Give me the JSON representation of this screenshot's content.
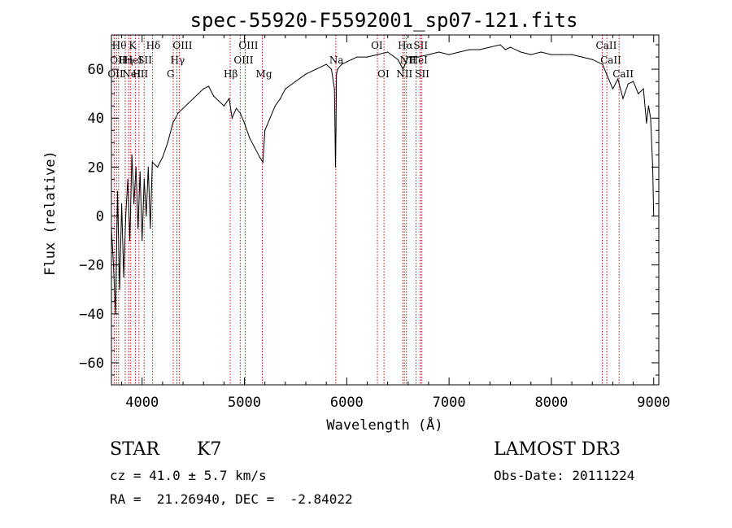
{
  "chart_data": {
    "type": "line",
    "title": "spec-55920-F5592001_sp07-121.fits",
    "xlabel": "Wavelength (Å)",
    "ylabel": "Flux (relative)",
    "xlim": [
      3700,
      9050
    ],
    "ylim": [
      -69,
      74
    ],
    "xticks": [
      4000,
      5000,
      6000,
      7000,
      8000,
      9000
    ],
    "yticks": [
      -60,
      -40,
      -20,
      0,
      20,
      40,
      60
    ],
    "series": [
      {
        "name": "flux",
        "x": [
          3700,
          3720,
          3740,
          3760,
          3780,
          3800,
          3820,
          3840,
          3860,
          3880,
          3900,
          3920,
          3940,
          3960,
          3980,
          4000,
          4020,
          4040,
          4060,
          4080,
          4100,
          4150,
          4200,
          4250,
          4300,
          4350,
          4400,
          4450,
          4500,
          4550,
          4600,
          4650,
          4700,
          4750,
          4800,
          4850,
          4880,
          4920,
          4960,
          5000,
          5050,
          5100,
          5150,
          5180,
          5200,
          5250,
          5300,
          5350,
          5400,
          5500,
          5600,
          5700,
          5800,
          5850,
          5880,
          5890,
          5895,
          5900,
          5910,
          5950,
          6000,
          6050,
          6100,
          6200,
          6300,
          6400,
          6500,
          6550,
          6600,
          6700,
          6800,
          6900,
          7000,
          7100,
          7200,
          7300,
          7400,
          7500,
          7550,
          7600,
          7700,
          7800,
          7900,
          8000,
          8100,
          8200,
          8300,
          8400,
          8500,
          8540,
          8600,
          8650,
          8700,
          8750,
          8800,
          8850,
          8900,
          8930,
          8950,
          8970,
          8990,
          9000
        ],
        "y": [
          -5,
          -20,
          -40,
          10,
          -30,
          5,
          -25,
          0,
          15,
          -10,
          25,
          5,
          20,
          -5,
          18,
          -10,
          15,
          0,
          20,
          -5,
          22,
          20,
          24,
          30,
          38,
          42,
          44,
          46,
          48,
          50,
          52,
          53,
          49,
          47,
          45,
          48,
          40,
          44,
          42,
          38,
          32,
          28,
          24,
          22,
          35,
          40,
          45,
          48,
          52,
          55,
          58,
          60,
          62,
          60,
          52,
          20,
          35,
          58,
          60,
          62,
          63,
          64,
          65,
          65,
          66,
          67,
          64,
          60,
          65,
          65,
          66,
          67,
          66,
          67,
          68,
          68,
          69,
          70,
          68,
          69,
          67,
          66,
          67,
          66,
          66,
          66,
          65,
          64,
          62,
          58,
          52,
          56,
          48,
          54,
          55,
          50,
          52,
          38,
          45,
          40,
          20,
          0
        ]
      }
    ],
    "line_markers": [
      {
        "wavelength": 3727,
        "label": "OII",
        "row": 2
      },
      {
        "wavelength": 3750,
        "label": "OII",
        "row": 1
      },
      {
        "wavelength": 3770,
        "label": "Hθ",
        "row": 0
      },
      {
        "wavelength": 3835,
        "label": "Hη",
        "row": 1
      },
      {
        "wavelength": 3870,
        "label": "NeIII",
        "row": 2
      },
      {
        "wavelength": 3889,
        "label": "HeI",
        "row": 1
      },
      {
        "wavelength": 3934,
        "label": "K",
        "row": 0
      },
      {
        "wavelength": 3969,
        "label": "H",
        "row": 2
      },
      {
        "wavelength": 4020,
        "label": "SII",
        "row": 1
      },
      {
        "wavelength": 4102,
        "label": "Hδ",
        "row": 0
      },
      {
        "wavelength": 4304,
        "label": "G",
        "row": 2
      },
      {
        "wavelength": 4340,
        "label": "Hγ",
        "row": 1
      },
      {
        "wavelength": 4363,
        "label": "OIII",
        "row": 0
      },
      {
        "wavelength": 4861,
        "label": "Hβ",
        "row": 2
      },
      {
        "wavelength": 4959,
        "label": "OIII",
        "row": 1
      },
      {
        "wavelength": 5007,
        "label": "OIII",
        "row": 0
      },
      {
        "wavelength": 5175,
        "label": "Mg",
        "row": 2
      },
      {
        "wavelength": 5893,
        "label": "Na",
        "row": 1
      },
      {
        "wavelength": 6300,
        "label": "OI",
        "row": 0
      },
      {
        "wavelength": 6364,
        "label": "OI",
        "row": 2
      },
      {
        "wavelength": 6548,
        "label": "NII",
        "row": 2
      },
      {
        "wavelength": 6563,
        "label": "Hα",
        "row": 0
      },
      {
        "wavelength": 6583,
        "label": "NII",
        "row": 1
      },
      {
        "wavelength": 6678,
        "label": "HeI",
        "row": 1
      },
      {
        "wavelength": 6716,
        "label": "SII",
        "row": 0
      },
      {
        "wavelength": 6731,
        "label": "SII",
        "row": 2
      },
      {
        "wavelength": 8498,
        "label": "CaII",
        "row": 0
      },
      {
        "wavelength": 8542,
        "label": "CaII",
        "row": 1
      },
      {
        "wavelength": 8662,
        "label": "CaII",
        "row": 2
      }
    ]
  },
  "info": {
    "class_label": "STAR",
    "subclass": "K7",
    "survey": "LAMOST DR3",
    "cz": "cz = 41.0 ± 5.7 km/s",
    "obs_date": "Obs-Date: 20111224",
    "coords": "RA =  21.26940, DEC =  -2.84022"
  },
  "colors": {
    "spectrum": "#000000",
    "marker": "#c01010",
    "axes": "#000000",
    "background": "#ffffff"
  }
}
